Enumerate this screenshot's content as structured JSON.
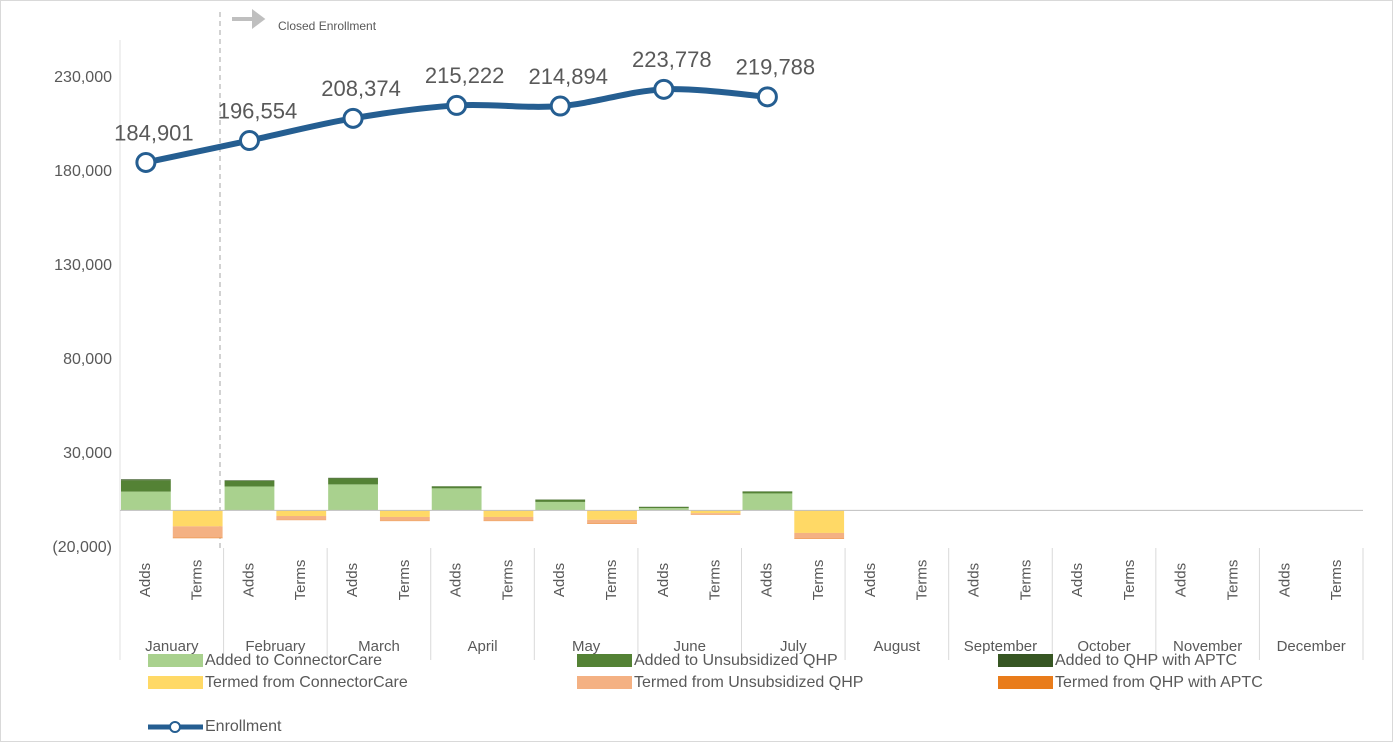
{
  "chart_data": {
    "type": "bar",
    "stacked": true,
    "categories": [
      "Adds",
      "Terms",
      "Adds",
      "Terms",
      "Adds",
      "Terms",
      "Adds",
      "Terms",
      "Adds",
      "Terms",
      "Adds",
      "Terms",
      "Adds",
      "Terms",
      "Adds",
      "Terms",
      "Adds",
      "Terms",
      "Adds",
      "Terms",
      "Adds",
      "Terms",
      "Adds",
      "Terms"
    ],
    "groups": [
      "January",
      "February",
      "March",
      "April",
      "May",
      "June",
      "July",
      "August",
      "September",
      "October",
      "November",
      "December"
    ],
    "series": [
      {
        "name": "Added to ConnectorCare",
        "color": "#a9d18e",
        "values": [
          10000,
          null,
          12700,
          null,
          13800,
          null,
          11700,
          null,
          4500,
          null,
          1200,
          null,
          9000,
          null,
          null,
          null,
          null,
          null,
          null,
          null,
          null,
          null,
          null,
          null
        ]
      },
      {
        "name": "Added to Unsubsidized QHP",
        "color": "#548235",
        "values": [
          6000,
          null,
          3000,
          null,
          3200,
          null,
          1000,
          null,
          1200,
          null,
          600,
          null,
          1000,
          null,
          null,
          null,
          null,
          null,
          null,
          null,
          null,
          null,
          null,
          null
        ]
      },
      {
        "name": "Added to QHP with APTC",
        "color": "#375623",
        "values": [
          500,
          null,
          300,
          null,
          300,
          null,
          100,
          null,
          100,
          null,
          100,
          null,
          100,
          null,
          null,
          null,
          null,
          null,
          null,
          null,
          null,
          null,
          null,
          null
        ]
      },
      {
        "name": "Termed from ConnectorCare",
        "color": "#ffd966",
        "values": [
          null,
          -8500,
          null,
          -3000,
          null,
          -3500,
          null,
          -3500,
          null,
          -5000,
          null,
          -1500,
          null,
          -12000,
          null,
          null,
          null,
          null,
          null,
          null,
          null,
          null,
          null,
          null
        ]
      },
      {
        "name": "Termed from Unsubsidized QHP",
        "color": "#f4b183",
        "values": [
          null,
          -6000,
          null,
          -2000,
          null,
          -2000,
          null,
          -2000,
          null,
          -2000,
          null,
          -800,
          null,
          -3000,
          null,
          null,
          null,
          null,
          null,
          null,
          null,
          null,
          null,
          null
        ]
      },
      {
        "name": "Termed from QHP with APTC",
        "color": "#e97c1b",
        "values": [
          null,
          -300,
          null,
          -200,
          null,
          -200,
          null,
          -200,
          null,
          -200,
          null,
          -100,
          null,
          -200,
          null,
          null,
          null,
          null,
          null,
          null,
          null,
          null,
          null,
          null
        ]
      }
    ],
    "line": {
      "name": "Enrollment",
      "color": "#255e91",
      "values": [
        184901,
        196554,
        208374,
        215222,
        214894,
        223778,
        219788,
        null,
        null,
        null,
        null,
        null
      ],
      "value_labels": [
        "184,901",
        "196,554",
        "208,374",
        "215,222",
        "214,894",
        "223,778",
        "219,788",
        null,
        null,
        null,
        null,
        null
      ]
    },
    "annotation": "Closed Enrollment",
    "ylim": [
      -20000,
      250000
    ],
    "yticks": [
      {
        "value": -20000,
        "label": "(20,000)"
      },
      {
        "value": 30000,
        "label": "30,000"
      },
      {
        "value": 80000,
        "label": "80,000"
      },
      {
        "value": 130000,
        "label": "130,000"
      },
      {
        "value": 180000,
        "label": "180,000"
      },
      {
        "value": 230000,
        "label": "230,000"
      }
    ],
    "grid": false
  }
}
